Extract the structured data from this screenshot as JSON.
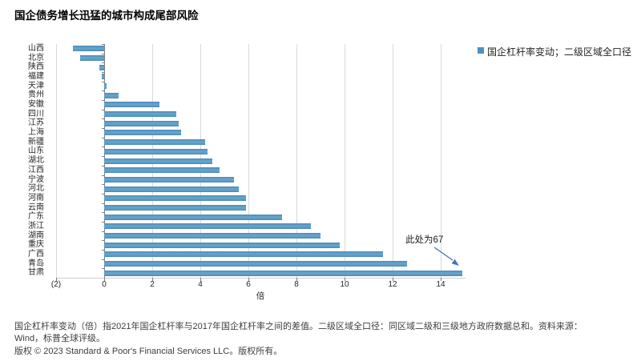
{
  "title": "国企债务增长迅猛的城市构成尾部风险",
  "legend": {
    "label": "国企杠杆率变动；二级区域全口径",
    "swatch_color": "#4e90c0"
  },
  "chart_data": {
    "type": "bar",
    "orientation": "horizontal",
    "title": "国企债务增长迅猛的城市构成尾部风险",
    "series_name": "国企杠杆率变动；二级区域全口径",
    "xlabel": "倍",
    "xlim": [
      -2,
      15.3
    ],
    "grid": true,
    "legend_position": "top-right",
    "bar_color": "#4e90c0",
    "categories": [
      "山西",
      "北京",
      "陕西",
      "福建",
      "天津",
      "贵州",
      "安徽",
      "四川",
      "江苏",
      "上海",
      "新疆",
      "山东",
      "湖北",
      "江西",
      "宁波",
      "河北",
      "河南",
      "云南",
      "广东",
      "浙江",
      "湖南",
      "重庆",
      "广西",
      "青岛",
      "甘肃"
    ],
    "values": [
      -1.3,
      -1.0,
      -0.2,
      -0.1,
      0.1,
      0.6,
      2.3,
      3.0,
      3.1,
      3.2,
      4.2,
      4.3,
      4.5,
      4.8,
      5.4,
      5.6,
      5.9,
      5.9,
      7.4,
      8.6,
      9.0,
      9.8,
      11.6,
      12.6,
      14.9
    ],
    "xticks": [
      {
        "label": "(2)",
        "value": -2
      },
      {
        "label": "0",
        "value": 0
      },
      {
        "label": "2",
        "value": 2
      },
      {
        "label": "4",
        "value": 4
      },
      {
        "label": "6",
        "value": 6
      },
      {
        "label": "8",
        "value": 8
      },
      {
        "label": "10",
        "value": 10
      },
      {
        "label": "12",
        "value": 12
      },
      {
        "label": "14",
        "value": 14
      }
    ],
    "clipped_bar": {
      "category": "甘肃",
      "displayed_value": 14.9,
      "actual_value": 67
    }
  },
  "annotation": {
    "text": "此处为67",
    "arrow_color": "#4472c4"
  },
  "footnotes": {
    "line1": "国企杠杆率变动（倍）指2021年国企杠杆率与2017年国企杠杆率之间的差值。二级区域全口径：同区域二级和三级地方政府数据总和。资料来源：",
    "line2": "Wind，标普全球评级。",
    "copyright": "版权 © 2023 Standard & Poor's Financial Services LLC。版权所有。"
  }
}
